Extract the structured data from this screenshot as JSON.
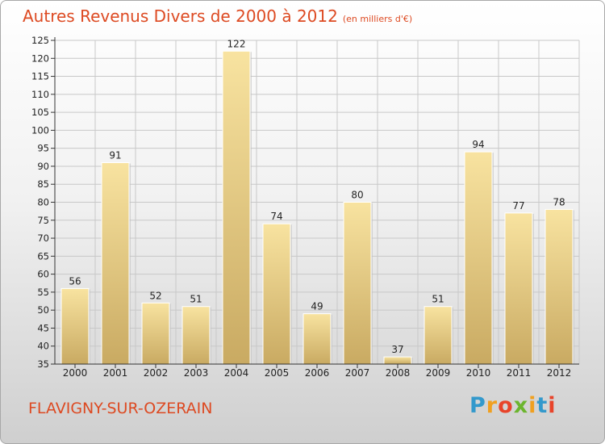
{
  "chart_data": {
    "type": "bar",
    "title": "Autres Revenus Divers de 2000 à 2012",
    "subtitle": "(en milliers d'€)",
    "categories": [
      "2000",
      "2001",
      "2002",
      "2003",
      "2004",
      "2005",
      "2006",
      "2007",
      "2008",
      "2009",
      "2010",
      "2011",
      "2012"
    ],
    "values": [
      56,
      91,
      52,
      51,
      122,
      74,
      49,
      80,
      37,
      51,
      94,
      77,
      78
    ],
    "ylim": [
      35,
      125
    ],
    "yticks": [
      35,
      40,
      45,
      50,
      55,
      60,
      65,
      70,
      75,
      80,
      85,
      90,
      95,
      100,
      105,
      110,
      115,
      120,
      125
    ],
    "grid": true,
    "xlabel": "",
    "ylabel": ""
  },
  "footer": {
    "commune": "FLAVIGNY-SUR-OZERAIN",
    "logo_letters": [
      "P",
      "r",
      "o",
      "x",
      "i",
      "t",
      "i"
    ],
    "logo_colors": [
      "#3399cc",
      "#f0a020",
      "#e8442a",
      "#6cb52e",
      "#f0a020",
      "#3399cc",
      "#e8442a"
    ]
  },
  "colors": {
    "title": "#dd4a22",
    "bar_light": "#f7e09a",
    "bar_dark": "#cfb06a",
    "grid": "#c8c8c8",
    "axis": "#333333"
  }
}
